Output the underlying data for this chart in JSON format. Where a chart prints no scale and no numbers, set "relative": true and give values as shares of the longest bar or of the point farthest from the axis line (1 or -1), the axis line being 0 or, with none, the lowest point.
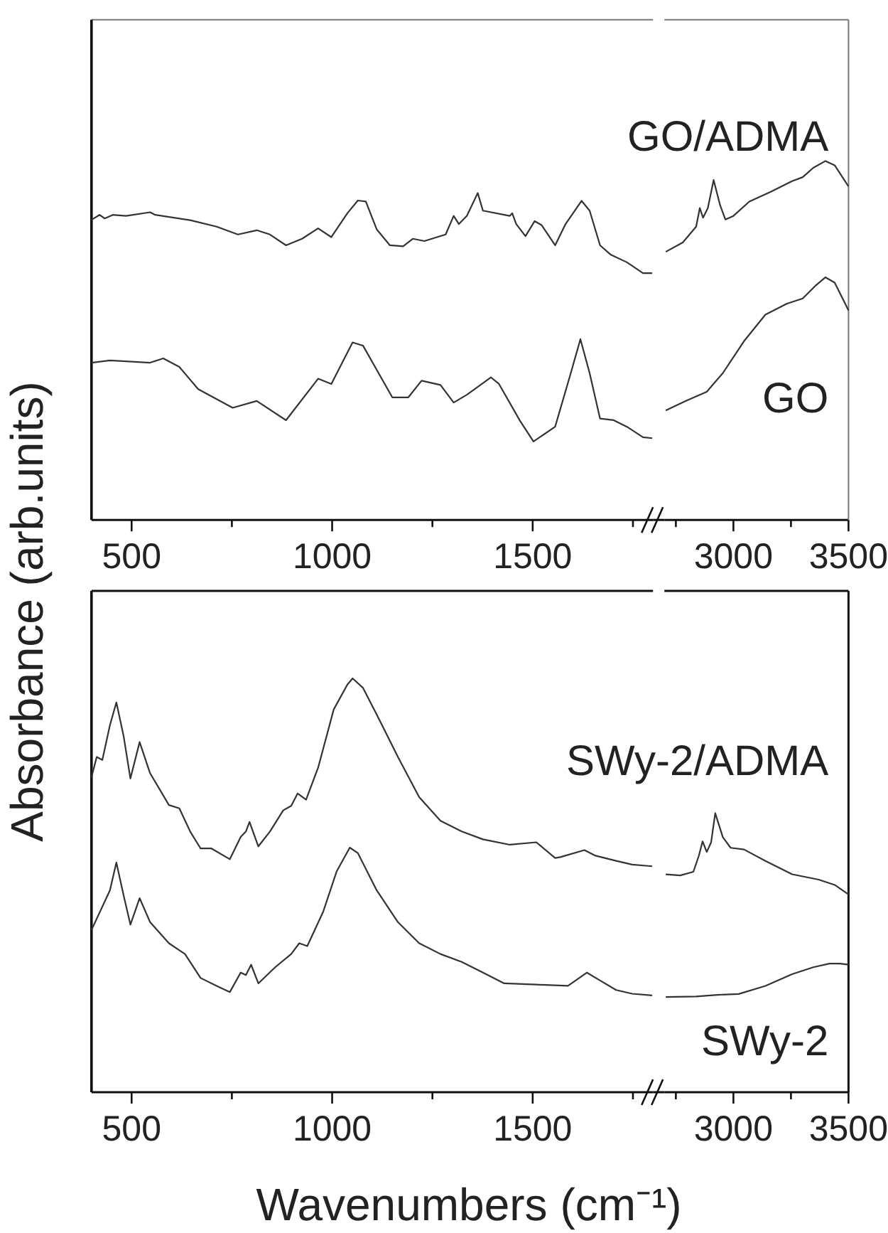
{
  "chart_data": [
    {
      "type": "line",
      "ylabel": "Absorbance (arb.units)",
      "relative": true,
      "tick_labels": "x",
      "xlim": [
        400,
        1800
      ],
      "xticks": [
        500,
        {
          "value": 750,
          "label": null
        },
        1000,
        {
          "value": 1250,
          "label": null
        },
        1500,
        {
          "value": 1750,
          "label": null
        }
      ],
      "series": [
        {
          "color": "#333333",
          "x": [
            400,
            420,
            433,
            453,
            486,
            546,
            559,
            646,
            712,
            765,
            812,
            845,
            885,
            925,
            965,
            998,
            1038,
            1064,
            1084,
            1111,
            1144,
            1177,
            1201,
            1230,
            1283,
            1303,
            1316,
            1336,
            1363,
            1376,
            1443,
            1449,
            1459,
            1482,
            1505,
            1522,
            1556,
            1582,
            1622,
            1642,
            1668,
            1695,
            1735,
            1775,
            1798
          ],
          "values": [
            0.918,
            0.933,
            0.922,
            0.933,
            0.93,
            0.941,
            0.933,
            0.917,
            0.897,
            0.873,
            0.886,
            0.873,
            0.84,
            0.86,
            0.892,
            0.865,
            0.938,
            0.977,
            0.974,
            0.889,
            0.84,
            0.837,
            0.86,
            0.853,
            0.873,
            0.93,
            0.905,
            0.93,
            1.0,
            0.946,
            0.93,
            0.938,
            0.905,
            0.868,
            0.914,
            0.902,
            0.84,
            0.905,
            0.976,
            0.946,
            0.84,
            0.811,
            0.788,
            0.755,
            0.755
          ]
        },
        {
          "color": "#333333",
          "x": [
            400,
            446,
            546,
            579,
            619,
            666,
            752,
            812,
            885,
            965,
            998,
            1051,
            1077,
            1150,
            1190,
            1223,
            1270,
            1303,
            1336,
            1396,
            1416,
            1469,
            1502,
            1556,
            1595,
            1619,
            1642,
            1668,
            1702,
            1735,
            1775,
            1798
          ],
          "values": [
            0.481,
            0.488,
            0.481,
            0.494,
            0.468,
            0.4,
            0.343,
            0.364,
            0.305,
            0.432,
            0.416,
            0.543,
            0.533,
            0.375,
            0.375,
            0.426,
            0.413,
            0.359,
            0.383,
            0.436,
            0.416,
            0.302,
            0.24,
            0.285,
            0.449,
            0.553,
            0.449,
            0.31,
            0.305,
            0.285,
            0.253,
            0.25
          ]
        }
      ]
    },
    {
      "type": "line",
      "relative": true,
      "tick_labels": "x",
      "xlim": [
        2700,
        3500
      ],
      "xticks": [
        {
          "value": 2750,
          "label": null
        },
        3000,
        {
          "value": 3250,
          "label": null
        },
        3500
      ],
      "series": [
        {
          "name": "GO/ADMA",
          "color": "#333333",
          "x": [
            2706,
            2780,
            2838,
            2854,
            2868,
            2889,
            2914,
            2942,
            2965,
            3000,
            3069,
            3162,
            3255,
            3301,
            3347,
            3400,
            3440,
            3500
          ],
          "values": [
            0.747,
            0.773,
            0.817,
            0.869,
            0.842,
            0.869,
            0.947,
            0.877,
            0.837,
            0.847,
            0.887,
            0.914,
            0.944,
            0.955,
            0.981,
            1.0,
            0.988,
            0.929
          ]
        },
        {
          "name": "GO",
          "color": "#333333",
          "x": [
            2706,
            2792,
            2884,
            2954,
            3046,
            3139,
            3231,
            3301,
            3359,
            3400,
            3440,
            3500
          ],
          "values": [
            0.305,
            0.331,
            0.357,
            0.409,
            0.498,
            0.572,
            0.602,
            0.617,
            0.654,
            0.676,
            0.661,
            0.584
          ]
        }
      ]
    },
    {
      "type": "line",
      "xlabel": "Wavenumbers (cm⁻¹)",
      "relative": true,
      "tick_labels": "x",
      "xlim": [
        400,
        1800
      ],
      "xticks": [
        500,
        {
          "value": 750,
          "label": null
        },
        1000,
        {
          "value": 1250,
          "label": null
        },
        1500,
        {
          "value": 1750,
          "label": null
        }
      ],
      "series": [
        {
          "color": "#333333",
          "x": [
            400,
            413,
            427,
            446,
            462,
            480,
            497,
            520,
            546,
            593,
            619,
            646,
            672,
            699,
            745,
            772,
            785,
            794,
            816,
            845,
            878,
            898,
            914,
            935,
            965,
            1004,
            1038,
            1051,
            1077,
            1111,
            1164,
            1217,
            1270,
            1323,
            1376,
            1443,
            1509,
            1556,
            1569,
            1629,
            1655,
            1708,
            1748,
            1798
          ],
          "values": [
            0.761,
            0.81,
            0.803,
            0.887,
            0.942,
            0.861,
            0.758,
            0.846,
            0.771,
            0.694,
            0.686,
            0.63,
            0.589,
            0.589,
            0.563,
            0.617,
            0.63,
            0.653,
            0.594,
            0.63,
            0.681,
            0.692,
            0.722,
            0.707,
            0.784,
            0.925,
            0.985,
            1.0,
            0.977,
            0.913,
            0.81,
            0.713,
            0.656,
            0.63,
            0.611,
            0.598,
            0.604,
            0.566,
            0.568,
            0.585,
            0.572,
            0.559,
            0.55,
            0.546
          ]
        },
        {
          "color": "#333333",
          "x": [
            400,
            446,
            462,
            480,
            497,
            520,
            546,
            593,
            633,
            672,
            712,
            745,
            772,
            785,
            798,
            816,
            858,
            898,
            918,
            938,
            978,
            1011,
            1044,
            1064,
            1111,
            1164,
            1217,
            1270,
            1323,
            1376,
            1429,
            1509,
            1588,
            1635,
            1668,
            1708,
            1748,
            1798
          ],
          "values": [
            0.392,
            0.488,
            0.555,
            0.476,
            0.405,
            0.469,
            0.411,
            0.36,
            0.334,
            0.276,
            0.257,
            0.242,
            0.289,
            0.283,
            0.308,
            0.263,
            0.302,
            0.334,
            0.36,
            0.353,
            0.437,
            0.533,
            0.591,
            0.578,
            0.488,
            0.411,
            0.36,
            0.334,
            0.315,
            0.289,
            0.263,
            0.26,
            0.257,
            0.289,
            0.27,
            0.247,
            0.238,
            0.234
          ]
        }
      ]
    },
    {
      "type": "line",
      "relative": true,
      "tick_labels": "x",
      "xlim": [
        2700,
        3500
      ],
      "xticks": [
        {
          "value": 2750,
          "label": null
        },
        3000,
        {
          "value": 3250,
          "label": null
        },
        3500
      ],
      "series": [
        {
          "name": "SWy-2/ADMA",
          "color": "#333333",
          "x": [
            2706,
            2769,
            2826,
            2850,
            2866,
            2884,
            2903,
            2921,
            2954,
            2988,
            3046,
            3139,
            3255,
            3370,
            3440,
            3500
          ],
          "values": [
            0.781,
            0.777,
            0.79,
            0.848,
            0.899,
            0.861,
            0.895,
            1.0,
            0.914,
            0.876,
            0.87,
            0.829,
            0.781,
            0.762,
            0.743,
            0.709
          ]
        },
        {
          "name": "SWy-2",
          "color": "#333333",
          "x": [
            2706,
            2838,
            2931,
            3023,
            3139,
            3255,
            3347,
            3417,
            3463,
            3500
          ],
          "values": [
            0.341,
            0.343,
            0.349,
            0.352,
            0.381,
            0.423,
            0.448,
            0.461,
            0.461,
            0.457
          ]
        }
      ]
    }
  ]
}
